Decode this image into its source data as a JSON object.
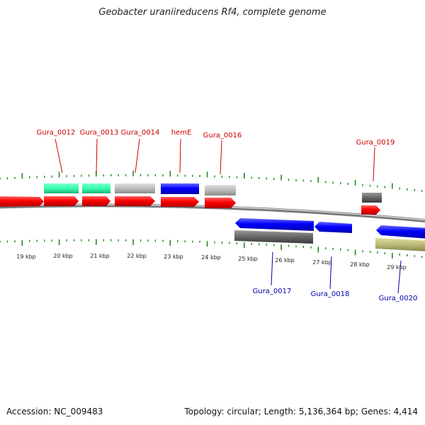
{
  "title": "Geobacter uraniireducens Rf4, complete genome",
  "footer": {
    "accession": "Accession: NC_009483",
    "stats": "Topology: circular; Length: 5,136,364 bp; Genes: 4,414"
  },
  "scale": {
    "unit": "kbp",
    "labels": [
      "19 kbp",
      "20 kbp",
      "21 kbp",
      "22 kbp",
      "23 kbp",
      "24 kbp",
      "25 kbp",
      "26 kbp",
      "27 kbp",
      "28 kbp",
      "29 kbp"
    ]
  },
  "colors": {
    "forward_cds": "#ff0000",
    "reverse_cds": "#0000ff",
    "label_forward": "#cc0000",
    "label_reverse": "#0000aa",
    "tick": "#228b22",
    "backbone": "#888888",
    "cog_green": "#33ffaa",
    "cog_grey": "#bbbbbb",
    "cog_dark": "#666666",
    "cog_khaki": "#bbbb77"
  },
  "genes": {
    "forward": [
      "Gura_0012",
      "Gura_0013",
      "Gura_0014",
      "hemE",
      "Gura_0016",
      "Gura_0019"
    ],
    "reverse": [
      "Gura_0017",
      "Gura_0018",
      "Gura_0020"
    ]
  }
}
